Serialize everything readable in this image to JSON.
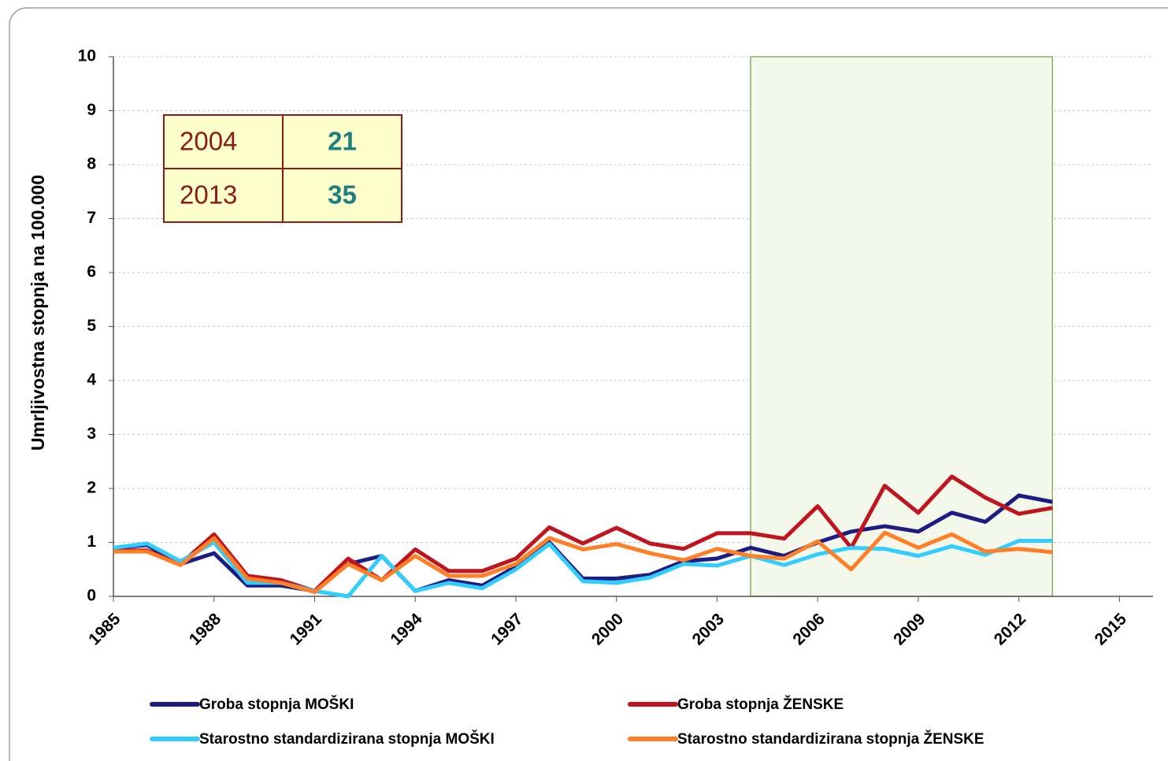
{
  "chart_data": {
    "type": "line",
    "y_label": "Umrljivostna stopnja na 100.000",
    "x": [
      1985,
      1986,
      1987,
      1988,
      1989,
      1990,
      1991,
      1992,
      1993,
      1994,
      1995,
      1996,
      1997,
      1998,
      1999,
      2000,
      2001,
      2002,
      2003,
      2004,
      2005,
      2006,
      2007,
      2008,
      2009,
      2010,
      2011,
      2012,
      2013
    ],
    "series": [
      {
        "name": "Groba stopnja MOŠKI",
        "color": "#1c1c82",
        "values": [
          0.9,
          0.95,
          0.6,
          0.8,
          0.2,
          0.2,
          0.1,
          0.6,
          0.75,
          0.1,
          0.3,
          0.2,
          0.55,
          1.0,
          0.33,
          0.33,
          0.4,
          0.65,
          0.7,
          0.9,
          0.75,
          1.0,
          1.2,
          1.3,
          1.2,
          1.55,
          1.38,
          1.87,
          1.75
        ]
      },
      {
        "name": "Groba stopnja ŽENSKE",
        "color": "#c0141e",
        "values": [
          0.85,
          0.85,
          0.6,
          1.15,
          0.38,
          0.3,
          0.1,
          0.7,
          0.3,
          0.87,
          0.47,
          0.47,
          0.7,
          1.28,
          0.98,
          1.27,
          0.98,
          0.88,
          1.17,
          1.17,
          1.07,
          1.67,
          0.9,
          2.05,
          1.55,
          2.22,
          1.83,
          1.53,
          1.64
        ]
      },
      {
        "name": "Starostno standardizirana stopnja MOŠKI",
        "color": "#33ccff",
        "values": [
          0.9,
          0.98,
          0.65,
          1.0,
          0.25,
          0.25,
          0.1,
          0.0,
          0.75,
          0.1,
          0.25,
          0.15,
          0.5,
          0.97,
          0.28,
          0.25,
          0.35,
          0.6,
          0.57,
          0.75,
          0.58,
          0.78,
          0.9,
          0.88,
          0.75,
          0.93,
          0.77,
          1.03,
          1.03
        ]
      },
      {
        "name": "Starostno standardizirana stopnja ŽENSKE",
        "color": "#ff7f27",
        "values": [
          0.83,
          0.83,
          0.58,
          1.08,
          0.33,
          0.25,
          0.08,
          0.6,
          0.3,
          0.75,
          0.38,
          0.38,
          0.6,
          1.08,
          0.87,
          0.97,
          0.8,
          0.67,
          0.88,
          0.75,
          0.7,
          1.02,
          0.5,
          1.18,
          0.9,
          1.15,
          0.83,
          0.88,
          0.82
        ]
      }
    ],
    "xlim": [
      1985,
      2016
    ],
    "ylim": [
      0,
      10
    ],
    "xticks": [
      1985,
      1988,
      1991,
      1994,
      1997,
      2000,
      2003,
      2006,
      2009,
      2012,
      2015
    ],
    "yticks": [
      0,
      1,
      2,
      3,
      4,
      5,
      6,
      7,
      8,
      9,
      10
    ],
    "grid": true,
    "highlight": [
      2004,
      2013
    ],
    "table": [
      [
        "2004",
        "21"
      ],
      [
        "2013",
        "35"
      ]
    ]
  }
}
